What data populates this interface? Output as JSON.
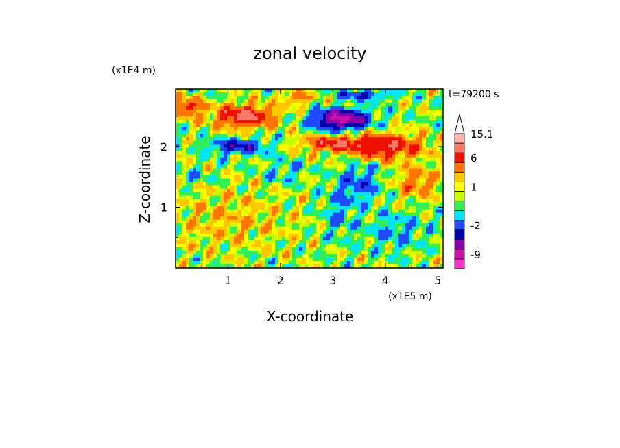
{
  "chart_data": {
    "type": "heatmap",
    "title": "zonal velocity",
    "xlabel": "X-coordinate",
    "ylabel": "Z-coordinate",
    "x_unit": "(x1E5 m)",
    "y_unit": "(x1E4 m)",
    "time_label": "t=79200 s",
    "xlim": [
      0,
      5.1
    ],
    "ylim": [
      0,
      2.95
    ],
    "x_ticks": [
      {
        "value": 1,
        "label": "1"
      },
      {
        "value": 2,
        "label": "2"
      },
      {
        "value": 3,
        "label": "3"
      },
      {
        "value": 4,
        "label": "4"
      },
      {
        "value": 5,
        "label": "5"
      }
    ],
    "y_ticks": [
      {
        "value": 1,
        "label": "1"
      },
      {
        "value": 2,
        "label": "2"
      }
    ],
    "colorbar": {
      "labels": [
        "15.1",
        "6",
        "1",
        "-2",
        "-9"
      ],
      "levels": [
        {
          "color": "#ff33cc",
          "value": "-12"
        },
        {
          "color": "#cc11aa",
          "value": "-9"
        },
        {
          "color": "#8800aa",
          "value": "-6"
        },
        {
          "color": "#0000aa",
          "value": "-4"
        },
        {
          "color": "#1e4bff",
          "value": "-2"
        },
        {
          "color": "#00e5ff",
          "value": "-1"
        },
        {
          "color": "#33ee55",
          "value": "0"
        },
        {
          "color": "#c8ff00",
          "value": "0.5"
        },
        {
          "color": "#ffff00",
          "value": "1"
        },
        {
          "color": "#ffc800",
          "value": "2"
        },
        {
          "color": "#ff7700",
          "value": "4"
        },
        {
          "color": "#ee1100",
          "value": "6"
        },
        {
          "color": "#ff7766",
          "value": "9"
        },
        {
          "color": "#ffb3b3",
          "value": "12"
        },
        {
          "color": "#ffffff",
          "value": "15.1"
        }
      ]
    },
    "field_features": [
      {
        "x": 1.3,
        "z": 2.5,
        "u": 7,
        "sx": 0.55,
        "sz": 0.18
      },
      {
        "x": 3.15,
        "z": 2.45,
        "u": -10,
        "sx": 0.5,
        "sz": 0.16
      },
      {
        "x": 4.0,
        "z": 2.0,
        "u": 6,
        "sx": 0.7,
        "sz": 0.2
      },
      {
        "x": 1.2,
        "z": 2.0,
        "u": -5,
        "sx": 0.55,
        "sz": 0.12
      },
      {
        "x": 3.0,
        "z": 2.05,
        "u": 5,
        "sx": 0.6,
        "sz": 0.12
      },
      {
        "x": 0.2,
        "z": 2.65,
        "u": 5,
        "sx": 0.3,
        "sz": 0.15
      },
      {
        "x": 3.5,
        "z": 1.4,
        "u": -3,
        "sx": 0.4,
        "sz": 0.3
      },
      {
        "x": 3.1,
        "z": 0.9,
        "u": -2,
        "sx": 0.3,
        "sz": 0.4
      },
      {
        "x": 4.2,
        "z": 0.6,
        "u": -2,
        "sx": 0.6,
        "sz": 0.3
      },
      {
        "x": 1.0,
        "z": 0.8,
        "u": 1.5,
        "sx": 1.2,
        "sz": 0.5
      },
      {
        "x": 4.6,
        "z": 1.4,
        "u": 3,
        "sx": 0.4,
        "sz": 0.25
      },
      {
        "x": 2.3,
        "z": 2.8,
        "u": 3,
        "sx": 0.3,
        "sz": 0.12
      },
      {
        "x": 2.1,
        "z": 1.6,
        "u": -1.5,
        "sx": 0.4,
        "sz": 0.2
      },
      {
        "x": 0.3,
        "z": 1.5,
        "u": -2,
        "sx": 0.3,
        "sz": 0.1
      },
      {
        "x": 3.6,
        "z": 2.85,
        "u": -4,
        "sx": 0.5,
        "sz": 0.08
      }
    ]
  }
}
